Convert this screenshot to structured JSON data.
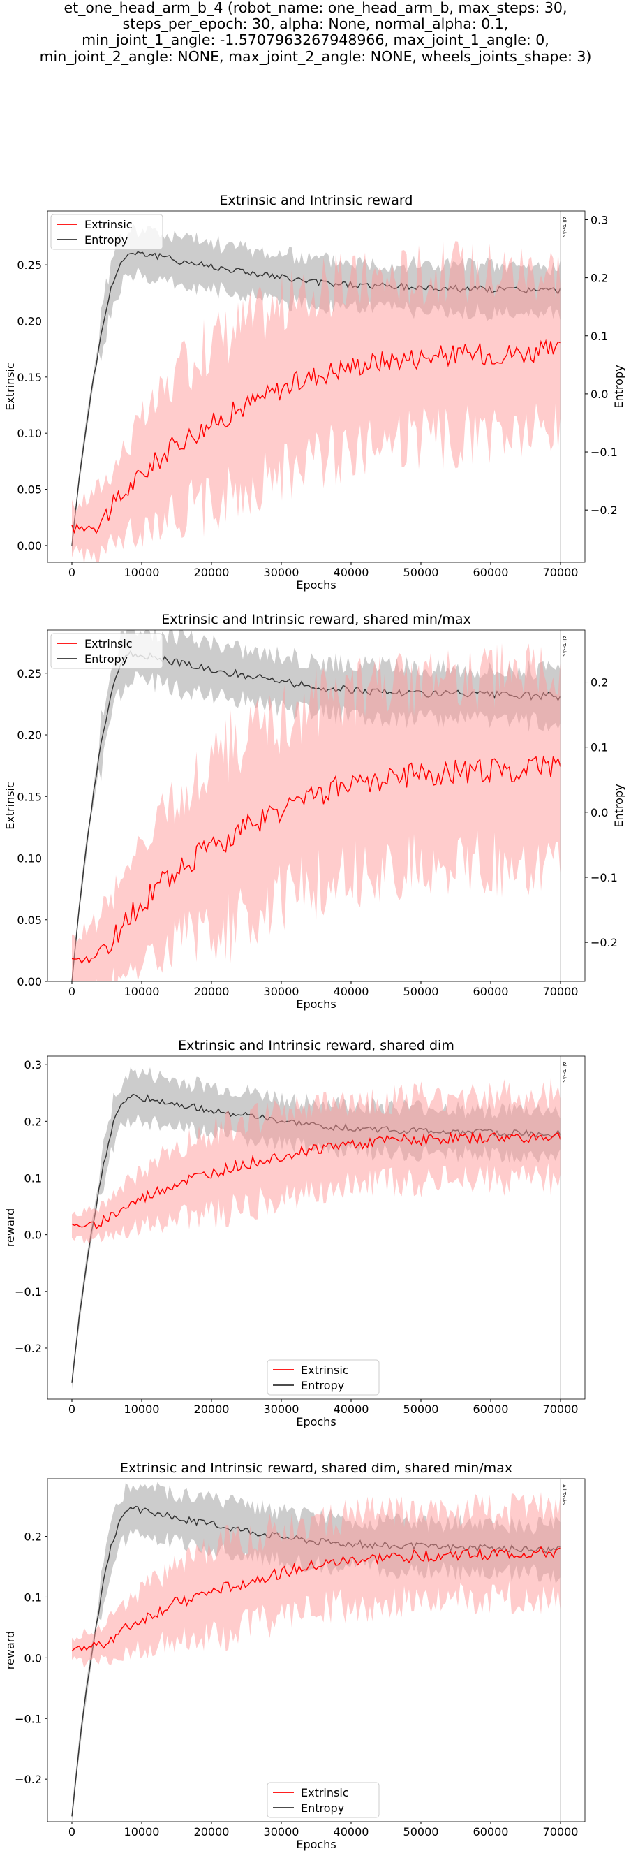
{
  "suptitle": [
    "et_one_head_arm_b_4 (robot_name: one_head_arm_b, max_steps: 30,",
    "steps_per_epoch: 30, alpha: None, normal_alpha: 0.1,",
    "min_joint_1_angle: -1.5707963267948966, max_joint_1_angle: 0,",
    "min_joint_2_angle: NONE, max_joint_2_angle: NONE, wheels_joints_shape: 3)"
  ],
  "colors": {
    "extrinsic": "#ff0000",
    "extrinsic_band": "#ff9999",
    "entropy": "#333333",
    "entropy_band": "#999999",
    "vline": "#bbbbbb"
  },
  "chart_data": [
    {
      "type": "line",
      "title": "Extrinsic and Intrinsic reward",
      "xlabel": "Epochs",
      "ylabel": "Extrinsic",
      "y2label": "Entropy",
      "xlim": [
        -3500,
        73500
      ],
      "ylim": [
        -0.015,
        0.298
      ],
      "y2lim": [
        -0.29,
        0.315
      ],
      "xticks": [
        "0",
        "10000",
        "20000",
        "30000",
        "40000",
        "50000",
        "60000",
        "70000"
      ],
      "yticks": [
        "0.00",
        "0.05",
        "0.10",
        "0.15",
        "0.20",
        "0.25"
      ],
      "y2ticks": [
        "−0.2",
        "−0.1",
        "0.0",
        "0.1",
        "0.2",
        "0.3"
      ],
      "legend": "upper left",
      "vline_label": "All Tasks",
      "series": [
        {
          "name": "Extrinsic",
          "axis": "left",
          "x": [
            0,
            2000,
            4000,
            6000,
            8000,
            10000,
            13000,
            16000,
            20000,
            25000,
            30000,
            35000,
            40000,
            45000,
            50000,
            55000,
            60000,
            65000,
            70000
          ],
          "y": [
            0.015,
            0.016,
            0.022,
            0.035,
            0.05,
            0.063,
            0.08,
            0.095,
            0.108,
            0.125,
            0.14,
            0.152,
            0.16,
            0.165,
            0.168,
            0.17,
            0.171,
            0.172,
            0.173
          ]
        },
        {
          "name": "Entropy",
          "axis": "right",
          "x": [
            0,
            1000,
            2000,
            3000,
            4000,
            5000,
            6000,
            7000,
            8000,
            9000,
            10000,
            12000,
            15000,
            20000,
            25000,
            30000,
            35000,
            40000,
            45000,
            50000,
            55000,
            60000,
            65000,
            70000
          ],
          "y": [
            -0.26,
            -0.15,
            -0.06,
            0.02,
            0.09,
            0.15,
            0.2,
            0.225,
            0.24,
            0.245,
            0.242,
            0.238,
            0.23,
            0.22,
            0.21,
            0.2,
            0.192,
            0.188,
            0.185,
            0.183,
            0.182,
            0.18,
            0.179,
            0.178
          ]
        }
      ]
    },
    {
      "type": "line",
      "title": "Extrinsic and Intrinsic reward, shared min/max",
      "xlabel": "Epochs",
      "ylabel": "Extrinsic",
      "y2label": "Entropy",
      "xlim": [
        -3500,
        73500
      ],
      "ylim": [
        0.0,
        0.285
      ],
      "y2lim": [
        -0.26,
        0.28
      ],
      "xticks": [
        "0",
        "10000",
        "20000",
        "30000",
        "40000",
        "50000",
        "60000",
        "70000"
      ],
      "yticks": [
        "0.00",
        "0.05",
        "0.10",
        "0.15",
        "0.20",
        "0.25"
      ],
      "y2ticks": [
        "−0.2",
        "−0.1",
        "0.0",
        "0.1",
        "0.2"
      ],
      "legend": "upper left",
      "vline_label": "All Tasks",
      "series": [
        {
          "name": "Extrinsic",
          "axis": "left",
          "x": [
            0,
            2000,
            4000,
            6000,
            8000,
            10000,
            13000,
            16000,
            20000,
            25000,
            30000,
            35000,
            40000,
            45000,
            50000,
            55000,
            60000,
            65000,
            70000
          ],
          "y": [
            0.015,
            0.016,
            0.022,
            0.035,
            0.05,
            0.063,
            0.08,
            0.095,
            0.108,
            0.125,
            0.14,
            0.152,
            0.16,
            0.165,
            0.168,
            0.17,
            0.171,
            0.172,
            0.173
          ]
        },
        {
          "name": "Entropy",
          "axis": "right",
          "x": [
            0,
            1000,
            2000,
            3000,
            4000,
            5000,
            6000,
            7000,
            8000,
            9000,
            10000,
            12000,
            15000,
            20000,
            25000,
            30000,
            35000,
            40000,
            45000,
            50000,
            55000,
            60000,
            65000,
            70000
          ],
          "y": [
            -0.26,
            -0.15,
            -0.06,
            0.02,
            0.09,
            0.15,
            0.2,
            0.225,
            0.24,
            0.245,
            0.242,
            0.238,
            0.23,
            0.22,
            0.21,
            0.2,
            0.192,
            0.188,
            0.185,
            0.183,
            0.182,
            0.18,
            0.179,
            0.178
          ]
        }
      ]
    },
    {
      "type": "line",
      "title": "Extrinsic and Intrinsic reward, shared dim",
      "xlabel": "Epochs",
      "ylabel": "reward",
      "xlim": [
        -3500,
        73500
      ],
      "ylim": [
        -0.29,
        0.315
      ],
      "xticks": [
        "0",
        "10000",
        "20000",
        "30000",
        "40000",
        "50000",
        "60000",
        "70000"
      ],
      "yticks": [
        "−0.2",
        "−0.1",
        "0.0",
        "0.1",
        "0.2",
        "0.3"
      ],
      "legend": "lower center",
      "vline_label": "All Tasks",
      "series": [
        {
          "name": "Extrinsic",
          "axis": "left",
          "x": [
            0,
            2000,
            4000,
            6000,
            8000,
            10000,
            13000,
            16000,
            20000,
            25000,
            30000,
            35000,
            40000,
            45000,
            50000,
            55000,
            60000,
            65000,
            70000
          ],
          "y": [
            0.015,
            0.016,
            0.022,
            0.035,
            0.05,
            0.063,
            0.08,
            0.095,
            0.108,
            0.125,
            0.14,
            0.152,
            0.16,
            0.165,
            0.168,
            0.17,
            0.171,
            0.172,
            0.173
          ]
        },
        {
          "name": "Entropy",
          "axis": "left",
          "x": [
            0,
            1000,
            2000,
            3000,
            4000,
            5000,
            6000,
            7000,
            8000,
            9000,
            10000,
            12000,
            15000,
            20000,
            25000,
            30000,
            35000,
            40000,
            45000,
            50000,
            55000,
            60000,
            65000,
            70000
          ],
          "y": [
            -0.26,
            -0.15,
            -0.06,
            0.02,
            0.09,
            0.15,
            0.2,
            0.225,
            0.24,
            0.245,
            0.242,
            0.238,
            0.23,
            0.22,
            0.21,
            0.2,
            0.192,
            0.188,
            0.185,
            0.183,
            0.182,
            0.18,
            0.179,
            0.178
          ]
        }
      ]
    },
    {
      "type": "line",
      "title": "Extrinsic and Intrinsic reward, shared dim, shared min/max",
      "xlabel": "Epochs",
      "ylabel": "reward",
      "xlim": [
        -3500,
        73500
      ],
      "ylim": [
        -0.27,
        0.295
      ],
      "xticks": [
        "0",
        "10000",
        "20000",
        "30000",
        "40000",
        "50000",
        "60000",
        "70000"
      ],
      "yticks": [
        "−0.2",
        "−0.1",
        "0.0",
        "0.1",
        "0.2"
      ],
      "legend": "lower center",
      "vline_label": "All Tasks",
      "series": [
        {
          "name": "Extrinsic",
          "axis": "left",
          "x": [
            0,
            2000,
            4000,
            6000,
            8000,
            10000,
            13000,
            16000,
            20000,
            25000,
            30000,
            35000,
            40000,
            45000,
            50000,
            55000,
            60000,
            65000,
            70000
          ],
          "y": [
            0.015,
            0.016,
            0.022,
            0.035,
            0.05,
            0.063,
            0.08,
            0.095,
            0.108,
            0.125,
            0.14,
            0.152,
            0.16,
            0.165,
            0.168,
            0.17,
            0.171,
            0.172,
            0.173
          ]
        },
        {
          "name": "Entropy",
          "axis": "left",
          "x": [
            0,
            1000,
            2000,
            3000,
            4000,
            5000,
            6000,
            7000,
            8000,
            9000,
            10000,
            12000,
            15000,
            20000,
            25000,
            30000,
            35000,
            40000,
            45000,
            50000,
            55000,
            60000,
            65000,
            70000
          ],
          "y": [
            -0.26,
            -0.15,
            -0.06,
            0.02,
            0.09,
            0.15,
            0.2,
            0.225,
            0.24,
            0.245,
            0.242,
            0.238,
            0.23,
            0.22,
            0.21,
            0.2,
            0.192,
            0.188,
            0.185,
            0.183,
            0.182,
            0.18,
            0.179,
            0.178
          ]
        }
      ]
    }
  ]
}
